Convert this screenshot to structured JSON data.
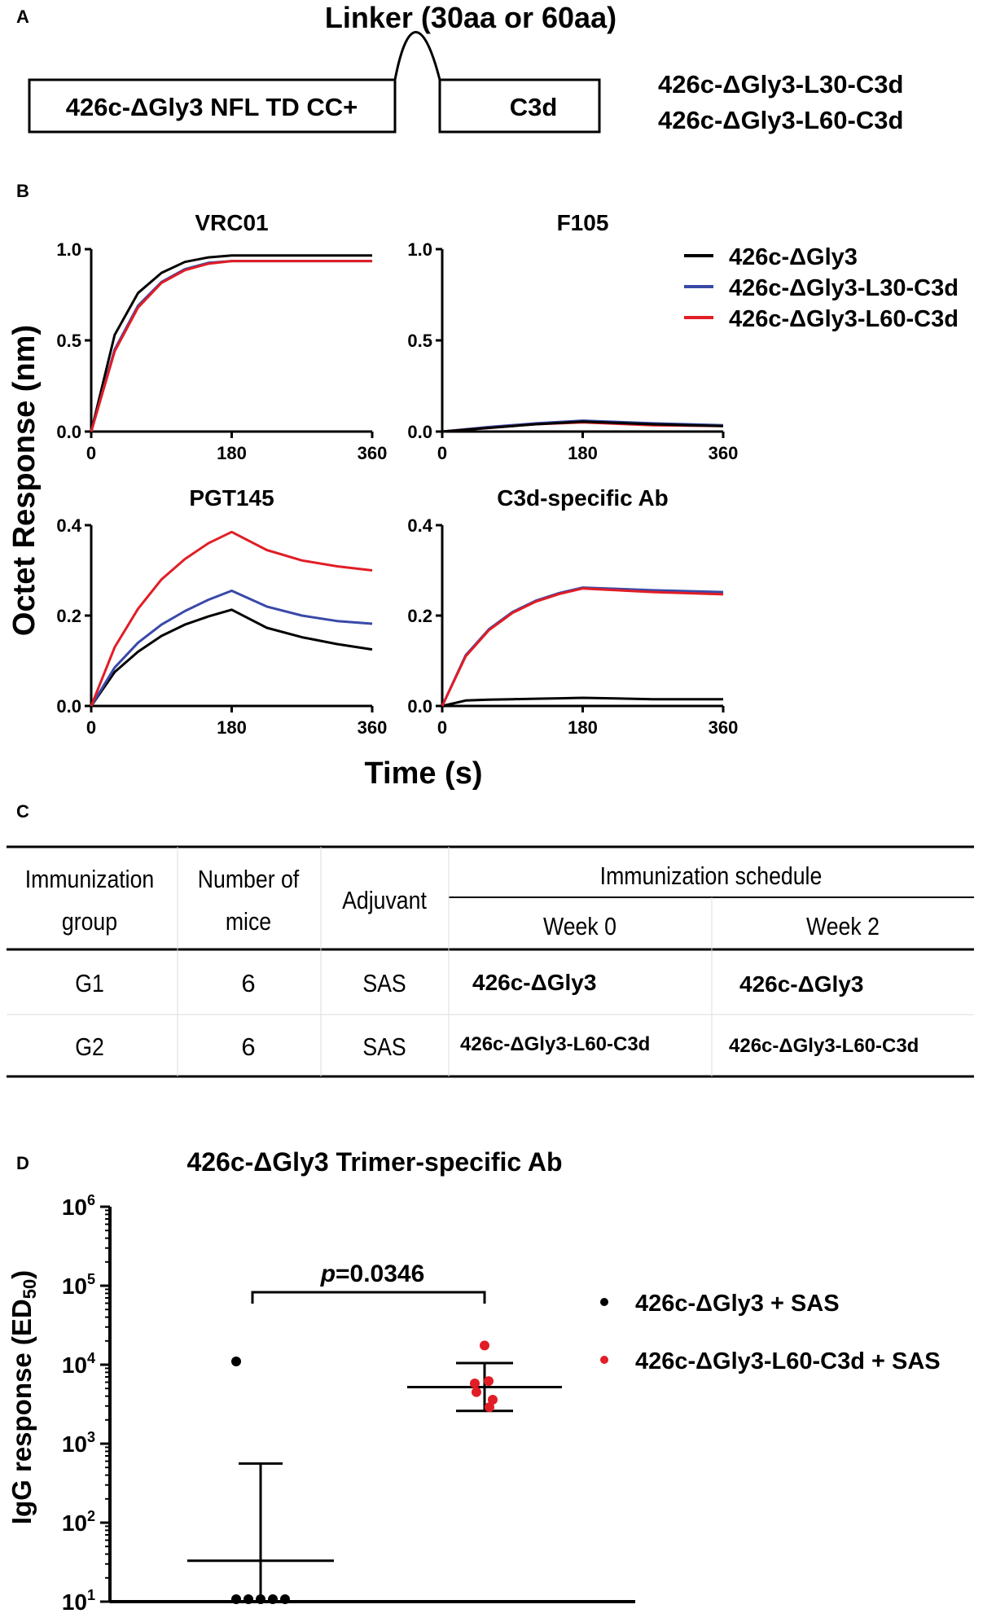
{
  "panel_labels": {
    "a": "A",
    "b": "B",
    "c": "C",
    "d": "D"
  },
  "panel_a": {
    "linker_label": "Linker (30aa or 60aa)",
    "box_left": "426c-ΔGly3 NFL TD CC+",
    "box_right": "C3d",
    "construct_1": "426c-ΔGly3-L30-C3d",
    "construct_2": "426c-ΔGly3-L60-C3d"
  },
  "panel_b": {
    "y_axis_title": "Octet Response (nm)",
    "x_axis_title": "Time (s)",
    "legend": [
      {
        "label": "426c-ΔGly3",
        "color": "#000000"
      },
      {
        "label": "426c-ΔGly3-L30-C3d",
        "color": "#3949a8"
      },
      {
        "label": "426c-ΔGly3-L60-C3d",
        "color": "#e11d25"
      }
    ]
  },
  "panel_c": {
    "headers": {
      "group_line1": "Immunization",
      "group_line2": "group",
      "mice_line1": "Number of",
      "mice_line2": "mice",
      "adjuvant": "Adjuvant",
      "schedule": "Immunization schedule",
      "week0": "Week 0",
      "week2": "Week 2"
    },
    "rows": [
      {
        "group": "G1",
        "mice": "6",
        "adjuvant": "SAS",
        "week0": "426c-ΔGly3",
        "week2": "426c-ΔGly3"
      },
      {
        "group": "G2",
        "mice": "6",
        "adjuvant": "SAS",
        "week0": "426c-ΔGly3-L60-C3d",
        "week2": "426c-ΔGly3-L60-C3d"
      }
    ]
  },
  "chart_data": [
    {
      "type": "line",
      "title": "VRC01",
      "xlabel": "Time (s)",
      "ylabel": "Octet Response (nm)",
      "xlim": [
        0,
        360
      ],
      "ylim": [
        0,
        1.0
      ],
      "xticks": [
        0,
        180,
        360
      ],
      "yticks": [
        0.0,
        0.5,
        1.0
      ],
      "ytick_labels": [
        "0.0",
        "0.5",
        "1.0"
      ],
      "x": [
        0,
        30,
        60,
        90,
        120,
        150,
        180,
        270,
        360
      ],
      "series": [
        {
          "name": "426c-ΔGly3",
          "color": "#000000",
          "values": [
            0,
            0.53,
            0.76,
            0.87,
            0.93,
            0.955,
            0.965,
            0.965,
            0.965
          ]
        },
        {
          "name": "426c-ΔGly3-L30-C3d",
          "color": "#3949a8",
          "values": [
            0,
            0.45,
            0.69,
            0.82,
            0.89,
            0.925,
            0.935,
            0.935,
            0.935
          ]
        },
        {
          "name": "426c-ΔGly3-L60-C3d",
          "color": "#e11d25",
          "values": [
            0,
            0.44,
            0.68,
            0.815,
            0.885,
            0.92,
            0.935,
            0.935,
            0.935
          ]
        }
      ]
    },
    {
      "type": "line",
      "title": "F105",
      "xlabel": "Time (s)",
      "ylabel": "Octet Response (nm)",
      "xlim": [
        0,
        360
      ],
      "ylim": [
        0,
        1.0
      ],
      "xticks": [
        0,
        180,
        360
      ],
      "yticks": [
        0.0,
        0.5,
        1.0
      ],
      "ytick_labels": [
        "0.0",
        "0.5",
        "1.0"
      ],
      "x": [
        0,
        60,
        120,
        180,
        270,
        360
      ],
      "series": [
        {
          "name": "426c-ΔGly3",
          "color": "#000000",
          "values": [
            0,
            0.02,
            0.04,
            0.055,
            0.04,
            0.03
          ]
        },
        {
          "name": "426c-ΔGly3-L30-C3d",
          "color": "#3949a8",
          "values": [
            0,
            0.025,
            0.045,
            0.06,
            0.045,
            0.035
          ]
        },
        {
          "name": "426c-ΔGly3-L60-C3d",
          "color": "#e11d25",
          "values": [
            0,
            0.02,
            0.04,
            0.05,
            0.035,
            0.03
          ]
        }
      ]
    },
    {
      "type": "line",
      "title": "PGT145",
      "xlabel": "Time (s)",
      "ylabel": "Octet Response (nm)",
      "xlim": [
        0,
        360
      ],
      "ylim": [
        0,
        0.4
      ],
      "xticks": [
        0,
        180,
        360
      ],
      "yticks": [
        0.0,
        0.2,
        0.4
      ],
      "ytick_labels": [
        "0.0",
        "0.2",
        "0.4"
      ],
      "x": [
        0,
        30,
        60,
        90,
        120,
        150,
        180,
        225,
        270,
        315,
        360
      ],
      "series": [
        {
          "name": "426c-ΔGly3",
          "color": "#000000",
          "values": [
            0,
            0.075,
            0.12,
            0.155,
            0.18,
            0.198,
            0.213,
            0.173,
            0.152,
            0.137,
            0.125
          ]
        },
        {
          "name": "426c-ΔGly3-L30-C3d",
          "color": "#3949a8",
          "values": [
            0,
            0.085,
            0.14,
            0.18,
            0.21,
            0.235,
            0.255,
            0.22,
            0.2,
            0.188,
            0.182
          ]
        },
        {
          "name": "426c-ΔGly3-L60-C3d",
          "color": "#e11d25",
          "values": [
            0,
            0.13,
            0.215,
            0.28,
            0.325,
            0.36,
            0.385,
            0.345,
            0.322,
            0.309,
            0.3
          ]
        }
      ]
    },
    {
      "type": "line",
      "title": "C3d-specific Ab",
      "xlabel": "Time (s)",
      "ylabel": "Octet Response (nm)",
      "xlim": [
        0,
        360
      ],
      "ylim": [
        0,
        0.4
      ],
      "xticks": [
        0,
        180,
        360
      ],
      "yticks": [
        0.0,
        0.2,
        0.4
      ],
      "ytick_labels": [
        "0.0",
        "0.2",
        "0.4"
      ],
      "x": [
        0,
        30,
        60,
        90,
        120,
        150,
        180,
        270,
        360
      ],
      "series": [
        {
          "name": "426c-ΔGly3",
          "color": "#000000",
          "values": [
            0,
            0.012,
            0.014,
            0.015,
            0.016,
            0.017,
            0.018,
            0.015,
            0.015
          ]
        },
        {
          "name": "426c-ΔGly3-L30-C3d",
          "color": "#3949a8",
          "values": [
            0,
            0.112,
            0.17,
            0.208,
            0.233,
            0.25,
            0.262,
            0.256,
            0.252
          ]
        },
        {
          "name": "426c-ΔGly3-L60-C3d",
          "color": "#e11d25",
          "values": [
            0,
            0.11,
            0.168,
            0.206,
            0.231,
            0.248,
            0.26,
            0.252,
            0.247
          ]
        }
      ]
    },
    {
      "type": "scatter",
      "title": "426c-ΔGly3 Trimer-specific Ab",
      "ylabel": "IgG response (ED50)",
      "yscale": "log",
      "ylim_exponent": [
        1,
        6
      ],
      "yticks_exponent": [
        1,
        2,
        3,
        4,
        5,
        6
      ],
      "ytick_base": "10",
      "ylabel_main": "IgG response (ED",
      "ylabel_sub": "50",
      "ylabel_close": ")",
      "categories": [
        "426c-ΔGly3 + SAS",
        "426c-ΔGly3-L60-C3d + SAS"
      ],
      "annotation": {
        "p_label": "p",
        "p_value": "=0.0346"
      },
      "series": [
        {
          "name": "426c-ΔGly3 + SAS",
          "color": "#000000",
          "values": [
            10,
            10,
            10,
            10,
            10,
            11000
          ],
          "mean": 33,
          "error_upper": 560
        },
        {
          "name": "426c-ΔGly3-L60-C3d + SAS",
          "color": "#e11d25",
          "values": [
            17500,
            6200,
            5800,
            4500,
            3600,
            2900
          ],
          "mean": 5200,
          "error_upper": 10500,
          "error_lower": 2600
        }
      ]
    }
  ]
}
